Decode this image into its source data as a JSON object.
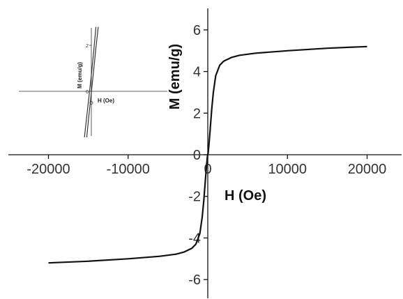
{
  "chart_data": [
    {
      "type": "line",
      "title": "",
      "xlabel": "H (Oe)",
      "ylabel": "M (emu/g)",
      "xlim": [
        -25000,
        25000
      ],
      "ylim": [
        -7,
        7
      ],
      "x_ticks": [
        -20000,
        -10000,
        0,
        10000,
        20000
      ],
      "x_tick_labels": [
        "-20000",
        "-10000",
        "0",
        "10000",
        "20000"
      ],
      "y_ticks": [
        -6,
        -4,
        -2,
        0,
        2,
        4,
        6
      ],
      "y_tick_labels": [
        "-6",
        "-4",
        "-2",
        "0",
        "2",
        "4",
        "6"
      ],
      "grid": false,
      "legend": "none",
      "color": "#111111",
      "series": [
        {
          "x": [
            -20000,
            -15000,
            -10000,
            -6000,
            -4000,
            -3000,
            -2000,
            -1500,
            -1000,
            -700,
            -500,
            -300,
            -150,
            -50,
            0,
            50,
            150,
            300,
            500,
            700,
            1000,
            1500,
            2000,
            3000,
            4000,
            6000,
            10000,
            15000,
            20000
          ],
          "y": [
            -5.2,
            -5.12,
            -5.0,
            -4.88,
            -4.78,
            -4.68,
            -4.5,
            -4.3,
            -3.8,
            -3.0,
            -2.2,
            -1.2,
            -0.5,
            -0.1,
            0.0,
            0.1,
            0.5,
            1.2,
            2.2,
            3.0,
            3.8,
            4.3,
            4.5,
            4.68,
            4.78,
            4.88,
            5.0,
            5.12,
            5.2
          ]
        }
      ]
    },
    {
      "type": "line",
      "title": "",
      "xlabel": "H (Oe)",
      "ylabel": "M (emu/g)",
      "y_ticks": [
        0,
        2
      ],
      "y_tick_labels": [
        "0",
        "2"
      ],
      "grid": false,
      "legend": "none",
      "color": "#333333",
      "series": [
        {
          "x": [
            -60,
            -30,
            0,
            30,
            60,
            90
          ],
          "y": [
            -2.0,
            -1.0,
            -0.05,
            0.9,
            1.9,
            2.8
          ]
        },
        {
          "x": [
            -90,
            -60,
            -30,
            0,
            30,
            60
          ],
          "y": [
            -2.0,
            -1.1,
            -0.2,
            0.7,
            1.7,
            2.8
          ]
        }
      ]
    }
  ]
}
